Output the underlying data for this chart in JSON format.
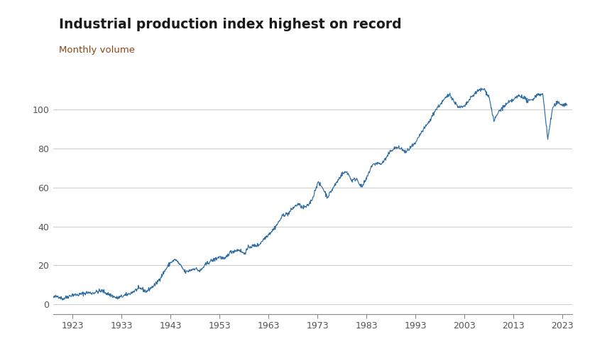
{
  "title": "Industrial production index highest on record",
  "subtitle": "Monthly volume",
  "title_color": "#1a1a1a",
  "subtitle_color": "#8B4513",
  "line_color": "#2E6DA4",
  "background_color": "#ffffff",
  "grid_color": "#cccccc",
  "xlim_start": 1919,
  "xlim_end": 2025,
  "ylim_min": -5,
  "ylim_max": 115,
  "yticks": [
    0,
    20,
    40,
    60,
    80,
    100
  ],
  "xtick_labels": [
    "1923",
    "1933",
    "1943",
    "1953",
    "1963",
    "1973",
    "1983",
    "1993",
    "2003",
    "2013",
    "2023"
  ],
  "xtick_years": [
    1923,
    1933,
    1943,
    1953,
    1963,
    1973,
    1983,
    1993,
    2003,
    2013,
    2023
  ],
  "key_years": [
    1919,
    1920,
    1921,
    1922,
    1923,
    1924,
    1925,
    1926,
    1927,
    1928,
    1929,
    1930,
    1931,
    1932,
    1933,
    1934,
    1935,
    1936,
    1937,
    1938,
    1939,
    1940,
    1941,
    1942,
    1943,
    1944,
    1945,
    1946,
    1947,
    1948,
    1949,
    1950,
    1951,
    1952,
    1953,
    1954,
    1955,
    1956,
    1957,
    1958,
    1959,
    1960,
    1961,
    1962,
    1963,
    1964,
    1965,
    1966,
    1967,
    1968,
    1969,
    1970,
    1971,
    1972,
    1973,
    1974,
    1975,
    1976,
    1977,
    1978,
    1979,
    1980,
    1981,
    1982,
    1983,
    1984,
    1985,
    1986,
    1987,
    1988,
    1989,
    1990,
    1991,
    1992,
    1993,
    1994,
    1995,
    1996,
    1997,
    1998,
    1999,
    2000,
    2001,
    2002,
    2003,
    2004,
    2005,
    2006,
    2007,
    2008,
    2009,
    2010,
    2011,
    2012,
    2013,
    2014,
    2015,
    2016,
    2017,
    2018,
    2019,
    2020,
    2021,
    2022,
    2023
  ],
  "key_values": [
    3.5,
    4.2,
    2.8,
    4.0,
    5.0,
    4.8,
    5.5,
    6.0,
    5.8,
    6.5,
    7.0,
    5.5,
    4.5,
    3.2,
    4.0,
    4.8,
    6.0,
    7.5,
    8.2,
    6.5,
    8.5,
    10.5,
    14.0,
    18.0,
    21.5,
    23.0,
    20.0,
    16.5,
    17.5,
    18.5,
    17.0,
    20.0,
    22.0,
    23.0,
    24.5,
    23.0,
    26.5,
    27.5,
    28.0,
    26.0,
    29.5,
    30.0,
    30.5,
    33.5,
    36.0,
    38.5,
    42.0,
    46.0,
    46.5,
    49.5,
    51.5,
    49.5,
    50.5,
    54.5,
    62.5,
    60.0,
    55.0,
    59.0,
    63.0,
    67.0,
    68.0,
    63.5,
    64.5,
    60.0,
    64.5,
    71.0,
    72.5,
    72.0,
    75.0,
    79.0,
    80.5,
    80.0,
    78.0,
    80.5,
    82.5,
    87.5,
    91.0,
    94.5,
    99.5,
    102.5,
    105.5,
    108.0,
    103.5,
    101.0,
    101.5,
    105.0,
    108.0,
    110.0,
    110.5,
    106.5,
    94.0,
    99.0,
    101.5,
    103.5,
    105.0,
    107.0,
    106.5,
    104.0,
    105.5,
    108.0,
    107.5,
    85.0,
    101.0,
    103.5,
    102.5
  ]
}
